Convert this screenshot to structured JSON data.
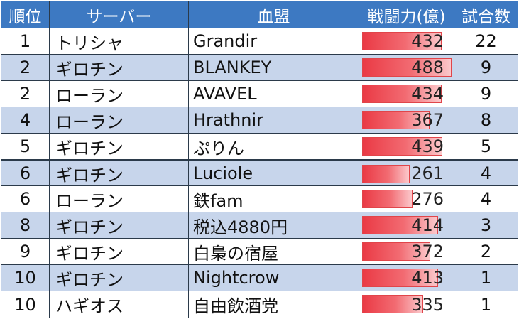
{
  "headers": [
    "順位",
    "サーバー",
    "血盟",
    "戦闘力(億)",
    "試合数"
  ],
  "max_power": 488,
  "rows": [
    {
      "rank": "1",
      "server": "トリシャ",
      "clan": "Grandir",
      "power": "432",
      "matches": "22"
    },
    {
      "rank": "2",
      "server": "ギロチン",
      "clan": "BLANKEY",
      "power": "488",
      "matches": "9"
    },
    {
      "rank": "2",
      "server": "ローラン",
      "clan": "AVAVEL",
      "power": "434",
      "matches": "9"
    },
    {
      "rank": "4",
      "server": "ローラン",
      "clan": "Hrathnir",
      "power": "367",
      "matches": "8"
    },
    {
      "rank": "5",
      "server": "ギロチン",
      "clan": "ぷりん",
      "power": "439",
      "matches": "5"
    },
    {
      "rank": "6",
      "server": "ギロチン",
      "clan": "Luciole",
      "power": "261",
      "matches": "4"
    },
    {
      "rank": "6",
      "server": "ローラン",
      "clan": "鉄fam",
      "power": "276",
      "matches": "4"
    },
    {
      "rank": "8",
      "server": "ギロチン",
      "clan": "税込4880円",
      "power": "414",
      "matches": "3"
    },
    {
      "rank": "9",
      "server": "ギロチン",
      "clan": "白梟の宿屋",
      "power": "372",
      "matches": "2"
    },
    {
      "rank": "10",
      "server": "ギロチン",
      "clan": "Nightcrow",
      "power": "413",
      "matches": "1"
    },
    {
      "rank": "10",
      "server": "ハギオス",
      "clan": "自由飲酒党",
      "power": "335",
      "matches": "1"
    }
  ]
}
